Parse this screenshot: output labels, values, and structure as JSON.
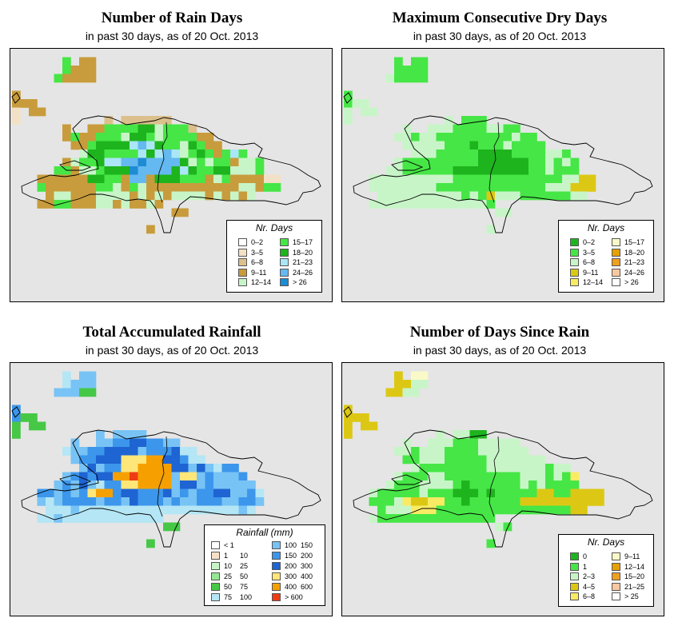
{
  "panels": [
    {
      "id": "rain_days",
      "title": "Number of Rain Days",
      "subtitle": "in past 30 days, as of  20 Oct. 2013",
      "legend": {
        "title": "Nr. Days",
        "items": [
          {
            "label": "0–2",
            "color": "#ffffff"
          },
          {
            "label": "3–5",
            "color": "#f2e1c6"
          },
          {
            "label": "6–8",
            "color": "#dcc08c"
          },
          {
            "label": "9–11",
            "color": "#c89c3c"
          },
          {
            "label": "12–14",
            "color": "#c8f5c8"
          },
          {
            "label": "15–17",
            "color": "#46e646"
          },
          {
            "label": "18–20",
            "color": "#1eb41e"
          },
          {
            "label": "21–23",
            "color": "#aae6f5"
          },
          {
            "label": "24–26",
            "color": "#64b9f0"
          },
          {
            "label": "> 26",
            "color": "#1e8cd2"
          }
        ]
      },
      "grid": [
        "....................................",
        "......F.DD..........................",
        "......FDDD..........................",
        ".....FDDDD..........................",
        "....................................",
        "D.......................................",
        "DDD.................................",
        "B.DD................................",
        "B..........C.CCCCCC.................",
        "......D..DDFFFFGGEFFFC..............",
        "......DFDDFFFEGGFEFFFFDD............",
        ".......DDFGGGGHIHGFFEGFDD...........",
        "........EGGFFFFHGHIHEFGFDFHF........",
        "......DEFFGHHIIJIIIIGEFEFFDEEF......",
        ".....FFDEEFGGGJIIIIGHGFFGGEEEF......",
        "...DDDDDDGGFFDIIDGGGFFFDEFDDDDBB....",
        "...FDDDDDDFFEDFEDDDDDDDDDDDEEDFF....",
        "....DEEDDDEEEEDEDEDEEEEDEDEDE.......",
        "...DDFFDDDEEDEDDED..................",
        "...................DD...............",
        "....................................",
        "................D..................."
      ]
    },
    {
      "id": "max_dry",
      "title": "Maximum Consecutive Dry Days",
      "subtitle": "in past 30 days, as of  20 Oct. 2013",
      "legend": {
        "title": "Nr. Days",
        "items": [
          {
            "label": "0–2",
            "color": "#1eb41e"
          },
          {
            "label": "3–5",
            "color": "#46e646"
          },
          {
            "label": "6–8",
            "color": "#c8f5c8"
          },
          {
            "label": "9–11",
            "color": "#dcc814"
          },
          {
            "label": "12–14",
            "color": "#faeb64"
          },
          {
            "label": "15–17",
            "color": "#fafac8"
          },
          {
            "label": "18–20",
            "color": "#e6a000"
          },
          {
            "label": "21–23",
            "color": "#f0a01e"
          },
          {
            "label": "24–26",
            "color": "#fac8a0"
          },
          {
            "label": "> 26",
            "color": "#ffffff"
          }
        ]
      },
      "grid": [
        "....................................",
        "......B.BB..........................",
        "......BBBB..........................",
        ".....CBBBB..........................",
        "....................................",
        "B...................................",
        "BCC.................................",
        "C.CC................................",
        "C...........C.BBB...................",
        ".......C..CCCBBBBCCBB...............",
        "......CCBCCBBBBBBBBBCBB.............",
        ".......CCCCCBBBABBBCBBBB............",
        "........CCCBBBBBAAAABBBBCCB.........",
        "......CBBBBBBBBBAAAAAABBCBCB........",
        ".....CCBBBBBBAAAAAAAAABBCBBB........",
        "...CCCCCCCCCCBBBBBBBBBBBBBCCDD......",
        "...CCCCCCCCBBBBBBBBBBBBBCCCDDD......",
        "....CCCCCCCCCCBCBDCCCBBBBBBCC.......",
        "...CCCCCCCCCCCCCCB..................",
        "..................CC................",
        "....................................",
        ".................C.................."
      ]
    },
    {
      "id": "total_rain",
      "title": "Total Accumulated Rainfall",
      "subtitle": "in past 30 days, as of  20 Oct. 2013",
      "legend": {
        "title": "Rainfall (mm)",
        "items": [
          {
            "label": "< 1",
            "label2": "",
            "color": "#ffffff"
          },
          {
            "label": "1",
            "label2": "10",
            "color": "#f5e1c8"
          },
          {
            "label": "10",
            "label2": "25",
            "color": "#c8f5c8"
          },
          {
            "label": "25",
            "label2": "50",
            "color": "#96e696"
          },
          {
            "label": "50",
            "label2": "75",
            "color": "#46c846"
          },
          {
            "label": "75",
            "label2": "100",
            "color": "#b4e6f5"
          },
          {
            "label": "100",
            "label2": "150",
            "color": "#78c3f5"
          },
          {
            "label": "150",
            "label2": "200",
            "color": "#3c96eb"
          },
          {
            "label": "200",
            "label2": "300",
            "color": "#1e64d2"
          },
          {
            "label": "300",
            "label2": "400",
            "color": "#ffe678"
          },
          {
            "label": "400",
            "label2": "600",
            "color": "#f5a000"
          },
          {
            "label": "> 600",
            "label2": "",
            "color": "#f03c14"
          }
        ]
      },
      "grid": [
        "....................................",
        "......F.GG..........................",
        "......FGGG..........................",
        ".....GGGEE..........................",
        "....................................",
        "H...................................",
        "HEE.................................",
        "E.EE................................",
        "E.........G.GGGG....................",
        ".......G..GGHHIIHHGG................",
        "......FGGHHIIIIGHHHIFF..............",
        ".......GHHIIIJJJKKIIHFF.............",
        "........GIGHHJJKKKKIIGIGFHH.........",
        "......GHIHIIKKLKKKKGJJGHGGGH........",
        ".....GHGIGFHHJJKKKKGIIGHGGGGG.......",
        "...HHGHGHJKKHIIHHHIGHGHHIIGGHF......",
        "...GFGHHHHGHHGIHHHGHGGHHHGGHHG......",
        "....FFFGFFFFFFFFFFFFFFFFFFFGF.......",
        "...FFGFFFFFFFFFFFF..................",
        "..................EE................",
        "....................................",
        "................E..................."
      ]
    },
    {
      "id": "since_rain",
      "title": "Number of Days Since Rain",
      "subtitle": "in past 30 days, as of  20 Oct. 2013",
      "legend": {
        "title": "Nr. Days",
        "items": [
          {
            "label": "0",
            "color": "#1eb41e"
          },
          {
            "label": "1",
            "color": "#46e646"
          },
          {
            "label": "2–3",
            "color": "#c8f5c8"
          },
          {
            "label": "4–5",
            "color": "#dcc814"
          },
          {
            "label": "6–8",
            "color": "#faeb64"
          },
          {
            "label": "9–11",
            "color": "#fafac8"
          },
          {
            "label": "12–14",
            "color": "#e6a000"
          },
          {
            "label": "15–20",
            "color": "#f0a01e"
          },
          {
            "label": "21–25",
            "color": "#fac8a0"
          },
          {
            "label": "> 25",
            "color": "#ffffff"
          }
        ]
      },
      "grid": [
        "....................................",
        "......D.FF..........................",
        "......DDCC..........................",
        ".....DDCC...........................",
        "....................................",
        "D...................................",
        "DDD.................................",
        "D.DD................................",
        "D..........C.CCAA...................",
        ".......C..CCCBBBCCCCC...............",
        "......CCBCCCBBBBCCCCCC..............",
        ".......BBCCCBBBBBCCCCCCC............",
        "........CBBBBBBBBCCCCCCCBCC.........",
        "......CBBBCCBBBBBBBBBCCCBCBE........",
        ".....CBBBCCCCBABBBBBBCBCBBBB........",
        "...CBBBBBCBBBAAABABBBBBDDBBDDDD.....",
        "...BBBCEDDEEBBABBBBBBDDDDDDDDDD.....",
        "....BCCCEEEBBBBBBBBBBBBBBBBDD.......",
        "...CBBBBBBBBBBBBBB..................",
        "..................CB................",
        "....................................",
        ".................B.................."
      ]
    }
  ]
}
